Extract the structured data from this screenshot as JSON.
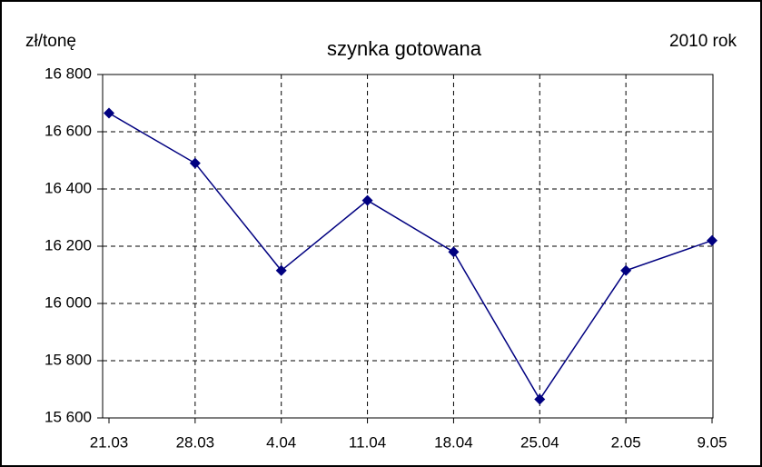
{
  "chart_data": {
    "type": "line",
    "title": "szynka gotowana",
    "y_label": "zł/tonę",
    "annotation": "2010 rok",
    "categories": [
      "21.03",
      "28.03",
      "4.04",
      "11.04",
      "18.04",
      "25.04",
      "2.05",
      "9.05"
    ],
    "series": [
      {
        "color": "#000080",
        "values": [
          16665,
          16490,
          16115,
          16360,
          16180,
          15665,
          16115,
          16220
        ]
      }
    ],
    "ylim": [
      15600,
      16800
    ],
    "yticks": [
      {
        "value": 15600,
        "label": "15 600"
      },
      {
        "value": 15800,
        "label": "15 800"
      },
      {
        "value": 16000,
        "label": "16 000"
      },
      {
        "value": 16200,
        "label": "16 200"
      },
      {
        "value": 16400,
        "label": "16 400"
      },
      {
        "value": 16600,
        "label": "16 600"
      },
      {
        "value": 16800,
        "label": "16 800"
      }
    ],
    "grid": true
  }
}
